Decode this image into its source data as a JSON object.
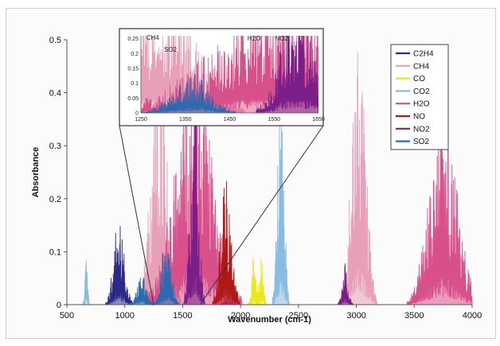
{
  "chart_data": {
    "type": "line",
    "xlabel": "Wavenumber (cm-1)",
    "ylabel": "Absorbance",
    "xlim": [
      500,
      4000
    ],
    "ylim": [
      0,
      0.5
    ],
    "x_ticks": [
      500,
      1000,
      1500,
      2000,
      2500,
      3000,
      3500,
      4000
    ],
    "y_ticks": [
      0,
      0.1,
      0.2,
      0.3,
      0.4,
      0.5
    ],
    "grid": false,
    "legend_position": "top-right",
    "series": [
      {
        "name": "C2H4",
        "color": "#2a2a86",
        "bands": [
          {
            "c": 950,
            "w": 45,
            "peak": 0.17
          },
          {
            "c": 1890,
            "w": 25,
            "peak": 0.03
          }
        ]
      },
      {
        "name": "CH4",
        "color": "#e8a0b8",
        "bands": [
          {
            "c": 1300,
            "w": 70,
            "peak": 0.48
          },
          {
            "c": 3020,
            "w": 60,
            "peak": 0.5
          }
        ]
      },
      {
        "name": "CO",
        "color": "#e8e81a",
        "bands": [
          {
            "c": 2115,
            "w": 18,
            "peak": 0.1
          },
          {
            "c": 2175,
            "w": 18,
            "peak": 0.11
          }
        ]
      },
      {
        "name": "CO2",
        "color": "#8abbe0",
        "bands": [
          {
            "c": 667,
            "w": 12,
            "peak": 0.09
          },
          {
            "c": 2349,
            "w": 28,
            "peak": 0.47
          }
        ]
      },
      {
        "name": "H2O",
        "color": "#d8508a",
        "bands": [
          {
            "c": 1595,
            "w": 160,
            "peak": 0.45
          },
          {
            "c": 3750,
            "w": 120,
            "peak": 0.36
          }
        ]
      },
      {
        "name": "NO",
        "color": "#b01818",
        "bands": [
          {
            "c": 1876,
            "w": 45,
            "peak": 0.26
          }
        ]
      },
      {
        "name": "NO2",
        "color": "#7a1e8a",
        "bands": [
          {
            "c": 1600,
            "w": 35,
            "peak": 0.4
          },
          {
            "c": 2905,
            "w": 25,
            "peak": 0.08
          }
        ]
      },
      {
        "name": "SO2",
        "color": "#2c6ab0",
        "bands": [
          {
            "c": 1360,
            "w": 40,
            "peak": 0.14
          },
          {
            "c": 1150,
            "w": 40,
            "peak": 0.06
          }
        ]
      }
    ],
    "inset": {
      "xlim": [
        1250,
        1650
      ],
      "ylim": [
        0,
        0.26
      ],
      "x_ticks": [
        1250,
        1350,
        1450,
        1550,
        1650
      ],
      "x_tick_labels": [
        "1250",
        "1350",
        "1450",
        "1550",
        "1650"
      ],
      "y_ticks": [
        0,
        0.05,
        0.1,
        0.15,
        0.2,
        0.25
      ],
      "y_tick_labels": [
        "0",
        "0.05",
        "0.1",
        "0.15",
        "0.2",
        "0.25"
      ],
      "annotations": [
        {
          "text": "CH4",
          "x": 1262,
          "y": 0.255
        },
        {
          "text": "SO2",
          "x": 1302,
          "y": 0.215
        },
        {
          "text": "H2O",
          "x": 1490,
          "y": 0.252
        },
        {
          "text": "NO2",
          "x": 1552,
          "y": 0.252
        }
      ]
    }
  }
}
